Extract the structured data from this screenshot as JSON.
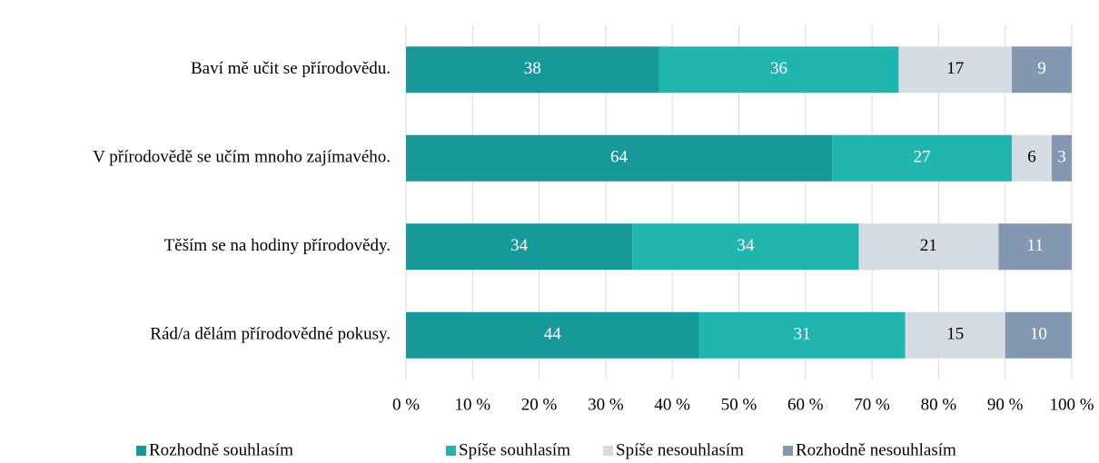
{
  "chart_data": {
    "type": "stacked_barh",
    "categories": [
      "Baví mě učit se přírodovědu.",
      "V přírodovědě se učím mnoho zajímavého.",
      "Těším se na hodiny přírodovědy.",
      "Rád/a dělám přírodovědné pokusy."
    ],
    "series": [
      {
        "name": "Rozhodně souhlasím",
        "color": "#17999a",
        "values": [
          38,
          64,
          34,
          44
        ]
      },
      {
        "name": "Spíše souhlasím",
        "color": "#20b5ae",
        "values": [
          36,
          27,
          34,
          31
        ]
      },
      {
        "name": "Spíše nesouhlasím",
        "color": "#d6dce4",
        "values": [
          17,
          6,
          21,
          15
        ]
      },
      {
        "name": "Rozhodně nesouhlasím",
        "color": "#8497b0",
        "values": [
          9,
          3,
          11,
          10
        ]
      }
    ],
    "xlim": [
      0,
      100
    ],
    "xticks": [
      {
        "value": 0,
        "label": "0 %"
      },
      {
        "value": 10,
        "label": "10 %"
      },
      {
        "value": 20,
        "label": "20 %"
      },
      {
        "value": 30,
        "label": "30 %"
      },
      {
        "value": 40,
        "label": "40 %"
      },
      {
        "value": 50,
        "label": "50 %"
      },
      {
        "value": 60,
        "label": "60 %"
      },
      {
        "value": 70,
        "label": "70 %"
      },
      {
        "value": 80,
        "label": "80 %"
      },
      {
        "value": 90,
        "label": "90 %"
      },
      {
        "value": 100,
        "label": "100 %"
      }
    ],
    "grid": true,
    "legend": "bottom"
  }
}
